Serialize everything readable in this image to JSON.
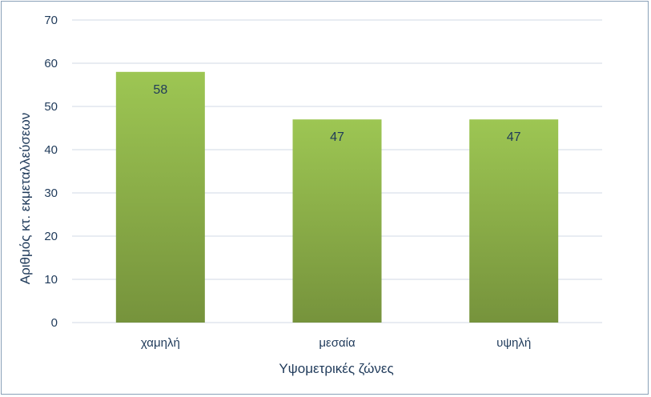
{
  "chart_data": {
    "type": "bar",
    "categories": [
      "χαμηλή",
      "μεσαία",
      "υψηλή"
    ],
    "values": [
      58,
      47,
      47
    ],
    "title": "",
    "xlabel": "Υψομετρικές ζώνες",
    "ylabel": "Αριθμός κτ. εκμεταλλεύσεων",
    "ylim": [
      0,
      70
    ],
    "yticks": [
      "0",
      "10",
      "20",
      "30",
      "40",
      "50",
      "60",
      "70"
    ],
    "grid": true,
    "legend": "none",
    "data_labels": true,
    "colors": {
      "bar_top": "#9dc653",
      "bar_bottom": "#76933c",
      "grid": "#d0d8e4",
      "text": "#1f3a5a"
    }
  }
}
